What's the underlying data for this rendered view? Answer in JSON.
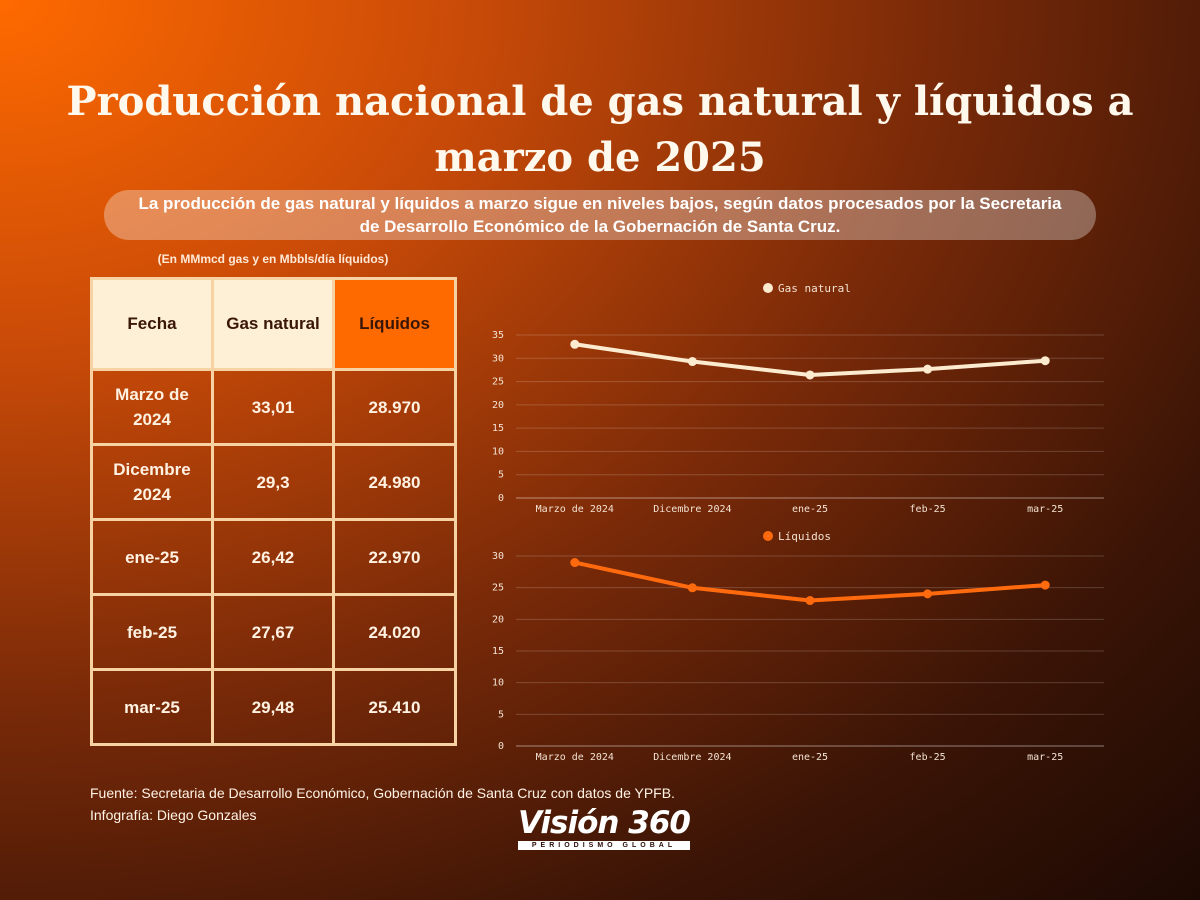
{
  "title": "Producción nacional de gas natural y líquidos a marzo de 2025",
  "subtitle": "La producción de gas natural y líquidos a marzo sigue en niveles bajos, según datos procesados por la Secretaria de Desarrollo Económico de la Gobernación de Santa Cruz.",
  "units_note": "(En MMmcd gas y en Mbbls/día líquidos)",
  "table": {
    "headers": [
      "Fecha",
      "Gas natural",
      "Líquidos"
    ],
    "rows": [
      [
        "Marzo de 2024",
        "33,01",
        "28.970"
      ],
      [
        "Dicembre 2024",
        "29,3",
        "24.980"
      ],
      [
        "ene-25",
        "26,42",
        "22.970"
      ],
      [
        "feb-25",
        "27,67",
        "24.020"
      ],
      [
        "mar-25",
        "29,48",
        "25.410"
      ]
    ]
  },
  "chart_data": [
    {
      "type": "line",
      "categories": [
        "Marzo de 2024",
        "Dicembre 2024",
        "ene-25",
        "feb-25",
        "mar-25"
      ],
      "series": [
        {
          "name": "Gas natural",
          "values": [
            33.01,
            29.3,
            26.42,
            27.67,
            29.48
          ],
          "color": "#fdebd0"
        }
      ],
      "ylim": [
        0,
        35
      ],
      "yticks": [
        0,
        5,
        10,
        15,
        20,
        25,
        30,
        35
      ],
      "grid": true,
      "legend": "top-center"
    },
    {
      "type": "line",
      "categories": [
        "Marzo de 2024",
        "Dicembre 2024",
        "ene-25",
        "feb-25",
        "mar-25"
      ],
      "series": [
        {
          "name": "Líquidos",
          "values": [
            28.97,
            24.98,
            22.97,
            24.02,
            25.41
          ],
          "color": "#ff6a0f"
        }
      ],
      "ylim": [
        0,
        30
      ],
      "yticks": [
        0,
        5,
        10,
        15,
        20,
        25,
        30
      ],
      "grid": true,
      "legend": "top-center"
    }
  ],
  "footer": {
    "source": "Fuente: Secretaria de Desarrollo Económico, Gobernación de Santa Cruz con datos de YPFB.",
    "credit": "Infografía: Diego Gonzales"
  },
  "logo": {
    "name": "Visión 360",
    "tagline": "PERIODISMO GLOBAL"
  }
}
